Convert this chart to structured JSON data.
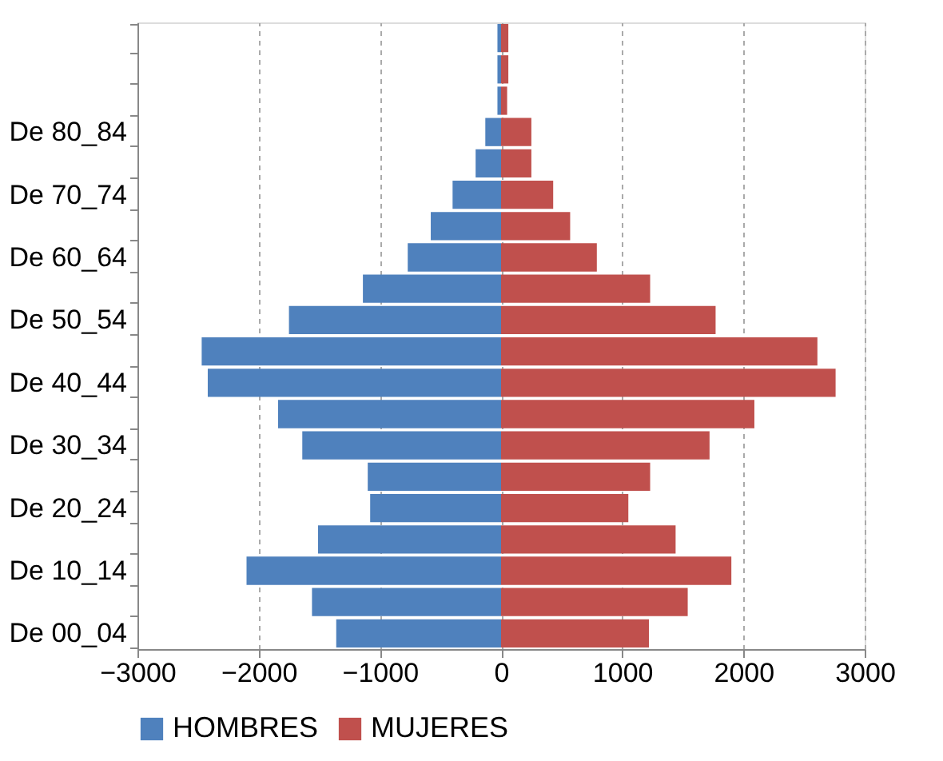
{
  "chart_data": {
    "type": "bar",
    "orientation": "horizontal",
    "categories": [
      null,
      null,
      null,
      "De 80_84",
      null,
      "De 70_74",
      null,
      "De 60_64",
      null,
      "De 50_54",
      null,
      "De 40_44",
      null,
      "De 30_34",
      null,
      "De 20_24",
      null,
      "De 10_14",
      null,
      "De 00_04"
    ],
    "series": [
      {
        "name": "HOMBRES",
        "color": "#4f81bd",
        "values": [
          -30,
          -30,
          -30,
          -130,
          -210,
          -400,
          -580,
          -770,
          -1140,
          -1750,
          -2470,
          -2420,
          -1840,
          -1640,
          -1100,
          -1080,
          -1510,
          -2100,
          -1560,
          -1360
        ]
      },
      {
        "name": "MUJERES",
        "color": "#c0504d",
        "values": [
          60,
          60,
          50,
          250,
          250,
          430,
          570,
          790,
          1230,
          1770,
          2610,
          2760,
          2090,
          1720,
          1230,
          1050,
          1440,
          1900,
          1540,
          1220
        ]
      }
    ],
    "xlim": [
      -3000,
      3000
    ],
    "xticks": [
      -3000,
      -2000,
      -1000,
      0,
      1000,
      2000,
      3000
    ],
    "stacked": true,
    "grid": "x",
    "legend": "bottom"
  }
}
